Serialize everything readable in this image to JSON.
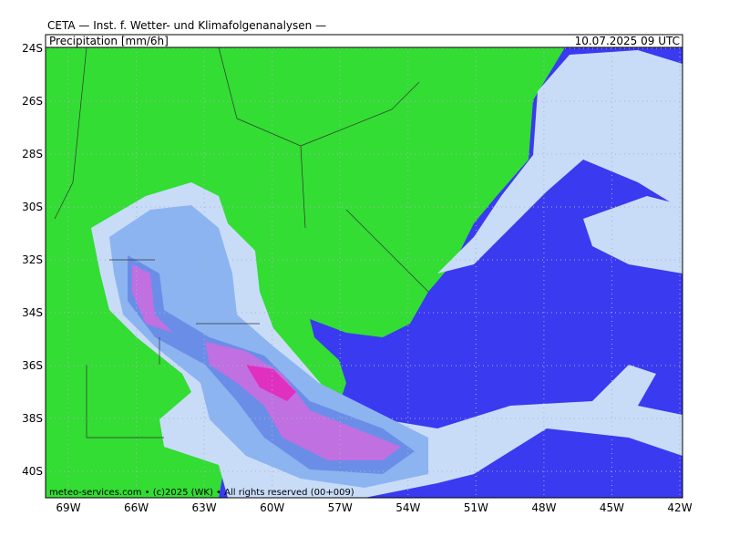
{
  "header": {
    "title": "CETA — Inst. f. Wetter- und Klimafolgenanalysen —",
    "variable": "Precipitation [mm/6h]",
    "valid_time": "10.07.2025 09 UTC"
  },
  "footer": "meteo-services.com • (c)2025 (WK) • All rights reserved (00+009)",
  "lat_labels": [
    {
      "value": -24,
      "label": "24S"
    },
    {
      "value": -26,
      "label": "26S"
    },
    {
      "value": -28,
      "label": "28S"
    },
    {
      "value": -30,
      "label": "30S"
    },
    {
      "value": -32,
      "label": "32S"
    },
    {
      "value": -34,
      "label": "34S"
    },
    {
      "value": -36,
      "label": "36S"
    },
    {
      "value": -38,
      "label": "38S"
    },
    {
      "value": -40,
      "label": "40S"
    }
  ],
  "lon_labels": [
    {
      "value": -69,
      "label": "69W"
    },
    {
      "value": -66,
      "label": "66W"
    },
    {
      "value": -63,
      "label": "63W"
    },
    {
      "value": -60,
      "label": "60W"
    },
    {
      "value": -57,
      "label": "57W"
    },
    {
      "value": -54,
      "label": "54W"
    },
    {
      "value": -51,
      "label": "51W"
    },
    {
      "value": -48,
      "label": "48W"
    },
    {
      "value": -45,
      "label": "45W"
    },
    {
      "value": -42,
      "label": "42W"
    }
  ]
}
